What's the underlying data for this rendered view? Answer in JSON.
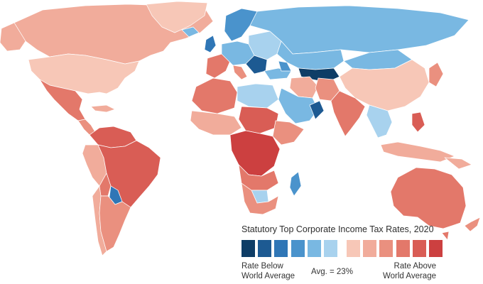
{
  "map": {
    "palette": {
      "below": [
        "#0e3d66",
        "#1d5a92",
        "#2f76b6",
        "#4a93cc",
        "#79b8e2",
        "#a8d2ee"
      ],
      "above": [
        "#f7c7b7",
        "#f1ac9b",
        "#ea907f",
        "#e3786a",
        "#d95d55",
        "#cc4040"
      ],
      "no_data": "#c9c9c9"
    }
  },
  "legend": {
    "title": "Statutory Top Corporate Income Tax Rates, 2020",
    "below_label_line1": "Rate Below",
    "below_label_line2": "World Average",
    "average_label": "Avg. = 23%",
    "above_label_line1": "Rate Above",
    "above_label_line2": "World Average",
    "swatches": [
      "#0e3d66",
      "#1d5a92",
      "#2f76b6",
      "#4a93cc",
      "#79b8e2",
      "#a8d2ee",
      "#f7c7b7",
      "#f1ac9b",
      "#ea907f",
      "#e3786a",
      "#d95d55",
      "#cc4040"
    ]
  }
}
